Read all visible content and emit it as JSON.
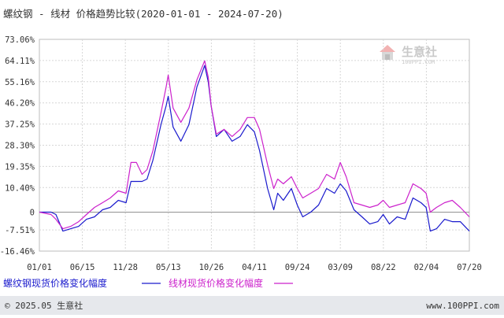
{
  "title": "螺纹钢 - 线材 价格趋势比较(2020-01-01 - 2024-07-20)",
  "watermark": {
    "name": "生意社",
    "url": "100PPI.COM"
  },
  "footer": {
    "copyright": "© 2025.05 生意社",
    "website": "www.100PPI.com"
  },
  "colors": {
    "rebar": "#1a1acd",
    "wire": "#cc22cc",
    "zero_line": "#999999",
    "grid": "#d6d6d6",
    "footer_bg": "#e6e8ec",
    "title": "#333333"
  },
  "chart_data": {
    "type": "line",
    "title": "螺纹钢 - 线材 价格趋势比较(2020-01-01 - 2024-07-20)",
    "xlabel": "",
    "ylabel": "",
    "xlim": [
      "2020-01-01",
      "2024-07-20"
    ],
    "ylim": [
      -16.46,
      73.06
    ],
    "grid": true,
    "legend_position": "bottom-left",
    "x_ticks": [
      "01/01",
      "06/15",
      "11/28",
      "05/13",
      "10/26",
      "04/11",
      "09/24",
      "03/09",
      "08/22",
      "02/04",
      "07/20"
    ],
    "y_ticks": [
      "73.06%",
      "64.11%",
      "55.16%",
      "46.20%",
      "37.25%",
      "28.30%",
      "19.35%",
      "10.40%",
      "0",
      "-7.51%",
      "-16.46%"
    ],
    "y_tick_values": [
      73.06,
      64.11,
      55.16,
      46.2,
      37.25,
      28.3,
      19.35,
      10.4,
      0,
      -7.51,
      -16.46
    ],
    "series": [
      {
        "name": "螺纹钢现货价格变化幅度",
        "color": "#1a1acd",
        "x": [
          "2020-01-01",
          "2020-02-15",
          "2020-03-05",
          "2020-04-01",
          "2020-05-01",
          "2020-06-01",
          "2020-07-01",
          "2020-08-01",
          "2020-09-01",
          "2020-10-01",
          "2020-11-01",
          "2020-12-01",
          "2020-12-20",
          "2021-01-10",
          "2021-02-01",
          "2021-02-20",
          "2021-03-15",
          "2021-04-15",
          "2021-05-05",
          "2021-05-13",
          "2021-06-01",
          "2021-07-01",
          "2021-08-01",
          "2021-09-01",
          "2021-10-01",
          "2021-10-15",
          "2021-10-26",
          "2021-11-15",
          "2021-12-15",
          "2022-01-15",
          "2022-02-15",
          "2022-03-15",
          "2022-04-11",
          "2022-05-01",
          "2022-06-01",
          "2022-06-25",
          "2022-07-10",
          "2022-08-01",
          "2022-09-01",
          "2022-09-24",
          "2022-10-15",
          "2022-11-15",
          "2022-12-15",
          "2023-01-15",
          "2023-02-15",
          "2023-03-09",
          "2023-04-01",
          "2023-05-01",
          "2023-06-01",
          "2023-07-01",
          "2023-08-01",
          "2023-08-22",
          "2023-09-15",
          "2023-10-15",
          "2023-11-15",
          "2023-12-15",
          "2024-01-15",
          "2024-02-04",
          "2024-02-20",
          "2024-03-15",
          "2024-04-15",
          "2024-05-15",
          "2024-06-15",
          "2024-07-20"
        ],
        "values": [
          0,
          0,
          -1,
          -8,
          -7,
          -6,
          -3,
          -2,
          1,
          2,
          5,
          4,
          13,
          13,
          13,
          14,
          22,
          37,
          45,
          49,
          36,
          30,
          37,
          53,
          62,
          55,
          45,
          32,
          35,
          30,
          32,
          37,
          34,
          26,
          10,
          1,
          8,
          5,
          10,
          3,
          -2,
          0,
          3,
          10,
          8,
          12,
          9,
          1,
          -2,
          -5,
          -4,
          -1,
          -5,
          -2,
          -3,
          6,
          4,
          2,
          -8,
          -7,
          -3,
          -4,
          -4,
          -8
        ]
      },
      {
        "name": "线材现货价格变化幅度",
        "color": "#cc22cc",
        "x": [
          "2020-01-01",
          "2020-02-15",
          "2020-03-05",
          "2020-04-01",
          "2020-05-01",
          "2020-06-01",
          "2020-07-01",
          "2020-08-01",
          "2020-09-01",
          "2020-10-01",
          "2020-11-01",
          "2020-12-01",
          "2020-12-20",
          "2021-01-10",
          "2021-02-01",
          "2021-02-20",
          "2021-03-15",
          "2021-04-15",
          "2021-05-05",
          "2021-05-13",
          "2021-06-01",
          "2021-07-01",
          "2021-08-01",
          "2021-09-01",
          "2021-10-01",
          "2021-10-15",
          "2021-10-26",
          "2021-11-15",
          "2021-12-15",
          "2022-01-15",
          "2022-02-15",
          "2022-03-15",
          "2022-04-11",
          "2022-05-01",
          "2022-06-01",
          "2022-06-25",
          "2022-07-10",
          "2022-08-01",
          "2022-09-01",
          "2022-09-24",
          "2022-10-15",
          "2022-11-15",
          "2022-12-15",
          "2023-01-15",
          "2023-02-15",
          "2023-03-09",
          "2023-04-01",
          "2023-05-01",
          "2023-06-01",
          "2023-07-01",
          "2023-08-01",
          "2023-08-22",
          "2023-09-15",
          "2023-10-15",
          "2023-11-15",
          "2023-12-15",
          "2024-01-15",
          "2024-02-04",
          "2024-02-20",
          "2024-03-15",
          "2024-04-15",
          "2024-05-15",
          "2024-06-15",
          "2024-07-20"
        ],
        "values": [
          0,
          -1,
          -3,
          -7,
          -6,
          -4,
          -1,
          2,
          4,
          6,
          9,
          8,
          21,
          21,
          16,
          18,
          26,
          42,
          53,
          58,
          44,
          38,
          44,
          56,
          64,
          57,
          45,
          33,
          35,
          32,
          35,
          40,
          40,
          35,
          20,
          10,
          14,
          12,
          15,
          10,
          6,
          8,
          10,
          16,
          14,
          21,
          15,
          4,
          3,
          2,
          3,
          5,
          2,
          3,
          4,
          12,
          10,
          8,
          0,
          2,
          4,
          5,
          2,
          -2
        ]
      }
    ]
  }
}
